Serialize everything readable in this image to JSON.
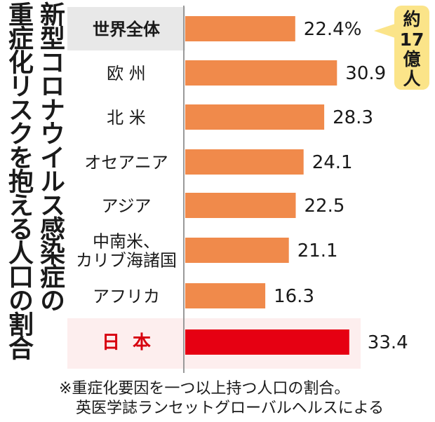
{
  "title_lines": [
    "新型コロナウイルス感染症の",
    "重症化リスクを抱える人口の割合"
  ],
  "callout_lines": [
    "約",
    "17",
    "億",
    "人"
  ],
  "footnote_lines": [
    "※重症化要因を一つ以上持つ人口の割合。",
    "英医学誌ランセットグローバルヘルスによる"
  ],
  "colors": {
    "bar": "#f08a4b",
    "highlight_bar": "#e60012",
    "highlight_text": "#d7000f",
    "callout": "#fbe489",
    "label_bg": "#e8e8e8"
  },
  "chart_data": {
    "type": "bar",
    "orientation": "horizontal",
    "unit": "%",
    "categories": [
      "世界全体",
      "欧州",
      "北米",
      "オセアニア",
      "アジア",
      "中南米、カリブ海諸国",
      "アフリカ",
      "日本"
    ],
    "category_lines": [
      [
        "世界全体"
      ],
      [
        "欧 州"
      ],
      [
        "北 米"
      ],
      [
        "オセアニア"
      ],
      [
        "アジア"
      ],
      [
        "中南米、",
        "カリブ海諸国"
      ],
      [
        "アフリカ"
      ],
      [
        "日本"
      ]
    ],
    "values": [
      22.4,
      30.9,
      28.3,
      24.1,
      22.5,
      21.1,
      16.3,
      33.4
    ],
    "value_labels": [
      "22.4%",
      "30.9",
      "28.3",
      "24.1",
      "22.5",
      "21.1",
      "16.3",
      "33.4"
    ],
    "highlight": "日本",
    "xlim": [
      0,
      40
    ]
  }
}
